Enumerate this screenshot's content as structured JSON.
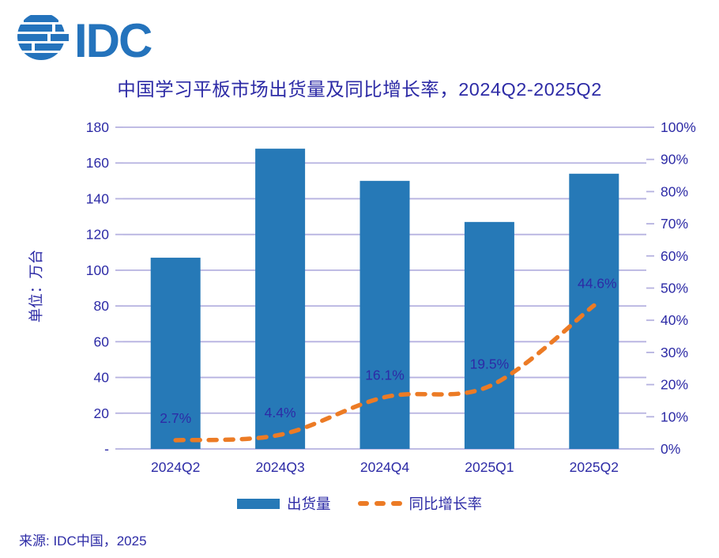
{
  "logo": {
    "text": "IDC",
    "color": "#2473BC"
  },
  "title": {
    "text": "中国学习平板市场出货量及同比增长率，2024Q2-2025Q2"
  },
  "chart_data": {
    "type": "bar",
    "title": "中国学习平板市场出货量及同比增长率，2024Q2-2025Q2",
    "categories": [
      "2024Q2",
      "2024Q3",
      "2024Q4",
      "2025Q1",
      "2025Q2"
    ],
    "series": [
      {
        "name": "出货量",
        "type": "bar",
        "axis": "left",
        "values": [
          107,
          168,
          150,
          127,
          154
        ],
        "unit": "万台"
      },
      {
        "name": "同比增长率",
        "type": "line",
        "axis": "right",
        "dashed": true,
        "values": [
          2.7,
          4.4,
          16.1,
          19.5,
          44.6
        ],
        "labels": [
          "2.7%",
          "4.4%",
          "16.1%",
          "19.5%",
          "44.6%"
        ],
        "unit": "%"
      }
    ],
    "left_axis": {
      "title": "单位：万台",
      "min": 0,
      "max": 180,
      "ticks": [
        "180",
        "160",
        "140",
        "120",
        "100",
        "80",
        "60",
        "40",
        "20",
        "-"
      ]
    },
    "right_axis": {
      "min": 0,
      "max": 100,
      "ticks": [
        "100%",
        "90%",
        "80%",
        "70%",
        "60%",
        "50%",
        "40%",
        "30%",
        "20%",
        "10%",
        "0%"
      ]
    },
    "grid": true,
    "legend_position": "bottom"
  },
  "legend": {
    "items": [
      {
        "label": "出货量",
        "swatch": "bar"
      },
      {
        "label": "同比增长率",
        "swatch": "dashed-line"
      }
    ]
  },
  "footer": {
    "source": "来源: IDC中国，2025"
  },
  "colors": {
    "text_navy": "#2D2BA6",
    "bar_blue": "#2679B7",
    "line_orange": "#EC7B25",
    "grid_lavender": "#B6B2E0",
    "logo_blue": "#2473BC",
    "background": "#ffffff"
  }
}
